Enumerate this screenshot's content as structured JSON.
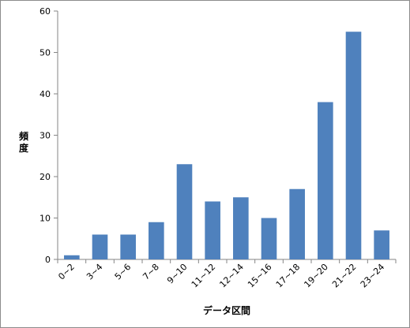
{
  "chart_data": {
    "type": "bar",
    "categories": [
      "0~2",
      "3~4",
      "5~6",
      "7~8",
      "9~10",
      "11~12",
      "12~14",
      "15~16",
      "17~18",
      "19~20",
      "21~22",
      "23~24"
    ],
    "values": [
      1,
      6,
      6,
      9,
      23,
      14,
      15,
      10,
      17,
      38,
      55,
      7
    ],
    "xlabel": "データ区間",
    "ylabel_chars": [
      "頻",
      "度"
    ],
    "ylim": [
      0,
      60
    ],
    "yticks": [
      0,
      10,
      20,
      30,
      40,
      50,
      60
    ],
    "grid": false,
    "legend": "none",
    "bar_color": "#4f81bd"
  }
}
